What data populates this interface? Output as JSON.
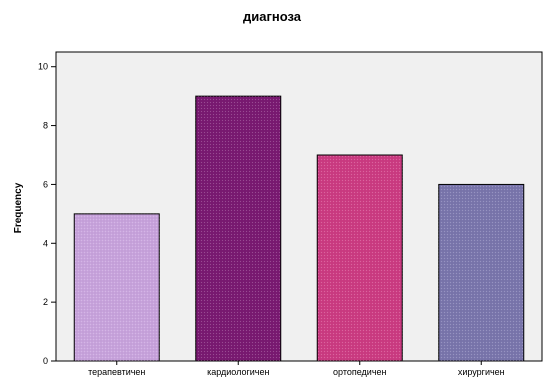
{
  "chart_data": {
    "type": "bar",
    "title": "диагноза",
    "xlabel": "",
    "ylabel": "Frequency",
    "categories": [
      "терапевтичен",
      "кардиологичен",
      "ортопедичен",
      "хирургичен"
    ],
    "values": [
      5,
      9,
      7,
      6
    ],
    "ylim": [
      0,
      10.5
    ],
    "yticks": [
      "0",
      "2",
      "4",
      "6",
      "8",
      "10"
    ],
    "colors": [
      "#c8a3dd",
      "#7a1a72",
      "#cc3b82",
      "#7a76ad"
    ],
    "plot_background": "#f0f0f0",
    "grid": false,
    "legend": "none"
  }
}
